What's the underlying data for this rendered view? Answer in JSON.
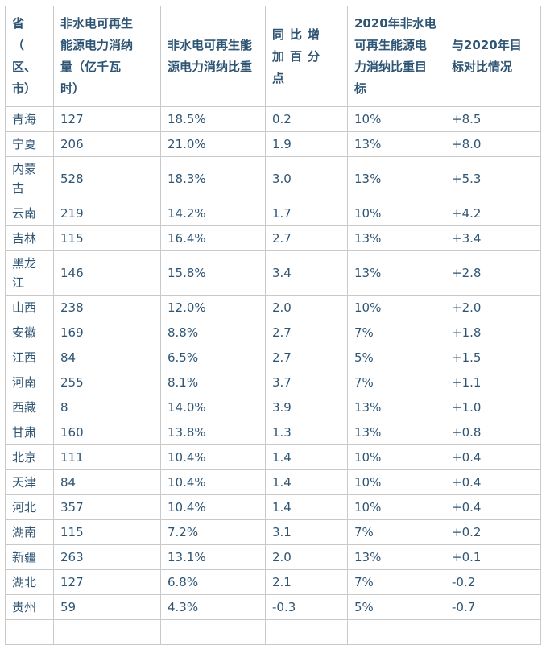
{
  "colors": {
    "text": "#2f5574",
    "border": "#c9c9c9",
    "background": "#ffffff"
  },
  "table": {
    "headers": [
      "省\n（\n区、\n市）",
      "非水电可再生\n能源电力消纳\n量（亿千瓦\n时）",
      "非水电可再生能\n源电力消纳比重",
      "同比增\n加百分\n点",
      "2020年非水电\n可再生能源电\n力消纳比重目\n标",
      "与2020年目\n标对比情况"
    ],
    "rows": [
      [
        "青海",
        "127",
        "18.5%",
        "0.2",
        "10%",
        "+8.5"
      ],
      [
        "宁夏",
        "206",
        "21.0%",
        "1.9",
        "13%",
        "+8.0"
      ],
      [
        "内蒙古",
        "528",
        "18.3%",
        "3.0",
        "13%",
        "+5.3"
      ],
      [
        "云南",
        "219",
        "14.2%",
        "1.7",
        "10%",
        "+4.2"
      ],
      [
        "吉林",
        "115",
        "16.4%",
        "2.7",
        "13%",
        "+3.4"
      ],
      [
        "黑龙江",
        "146",
        "15.8%",
        "3.4",
        "13%",
        "+2.8"
      ],
      [
        "山西",
        "238",
        "12.0%",
        "2.0",
        "10%",
        "+2.0"
      ],
      [
        "安徽",
        "169",
        "8.8%",
        "2.7",
        "7%",
        "+1.8"
      ],
      [
        "江西",
        "84",
        "6.5%",
        "2.7",
        "5%",
        "+1.5"
      ],
      [
        "河南",
        "255",
        "8.1%",
        "3.7",
        "7%",
        "+1.1"
      ],
      [
        "西藏",
        "8",
        "14.0%",
        "3.9",
        "13%",
        "+1.0"
      ],
      [
        "甘肃",
        "160",
        "13.8%",
        "1.3",
        "13%",
        "+0.8"
      ],
      [
        "北京",
        "111",
        "10.4%",
        "1.4",
        "10%",
        "+0.4"
      ],
      [
        "天津",
        "84",
        "10.4%",
        "1.4",
        "10%",
        "+0.4"
      ],
      [
        "河北",
        "357",
        "10.4%",
        "1.4",
        "10%",
        "+0.4"
      ],
      [
        "湖南",
        "115",
        "7.2%",
        "3.1",
        "7%",
        "+0.2"
      ],
      [
        "新疆",
        "263",
        "13.1%",
        "2.0",
        "13%",
        "+0.1"
      ],
      [
        "湖北",
        "127",
        "6.8%",
        "2.1",
        "7%",
        "-0.2"
      ],
      [
        "贵州",
        "59",
        "4.3%",
        "-0.3",
        "5%",
        "-0.7"
      ],
      [
        "",
        "",
        "",
        "",
        "",
        ""
      ]
    ]
  },
  "chart_data": {
    "type": "table",
    "columns": [
      "省（区、市）",
      "非水电可再生能源电力消纳量（亿千瓦时）",
      "非水电可再生能源电力消纳比重",
      "同比增加百分点",
      "2020年非水电可再生能源电力消纳比重目标",
      "与2020年目标对比情况"
    ],
    "rows": [
      [
        "青海",
        127,
        "18.5%",
        0.2,
        "10%",
        "+8.5"
      ],
      [
        "宁夏",
        206,
        "21.0%",
        1.9,
        "13%",
        "+8.0"
      ],
      [
        "内蒙古",
        528,
        "18.3%",
        3.0,
        "13%",
        "+5.3"
      ],
      [
        "云南",
        219,
        "14.2%",
        1.7,
        "10%",
        "+4.2"
      ],
      [
        "吉林",
        115,
        "16.4%",
        2.7,
        "13%",
        "+3.4"
      ],
      [
        "黑龙江",
        146,
        "15.8%",
        3.4,
        "13%",
        "+2.8"
      ],
      [
        "山西",
        238,
        "12.0%",
        2.0,
        "10%",
        "+2.0"
      ],
      [
        "安徽",
        169,
        "8.8%",
        2.7,
        "7%",
        "+1.8"
      ],
      [
        "江西",
        84,
        "6.5%",
        2.7,
        "5%",
        "+1.5"
      ],
      [
        "河南",
        255,
        "8.1%",
        3.7,
        "7%",
        "+1.1"
      ],
      [
        "西藏",
        8,
        "14.0%",
        3.9,
        "13%",
        "+1.0"
      ],
      [
        "甘肃",
        160,
        "13.8%",
        1.3,
        "13%",
        "+0.8"
      ],
      [
        "北京",
        111,
        "10.4%",
        1.4,
        "10%",
        "+0.4"
      ],
      [
        "天津",
        84,
        "10.4%",
        1.4,
        "10%",
        "+0.4"
      ],
      [
        "河北",
        357,
        "10.4%",
        1.4,
        "10%",
        "+0.4"
      ],
      [
        "湖南",
        115,
        "7.2%",
        3.1,
        "7%",
        "+0.2"
      ],
      [
        "新疆",
        263,
        "13.1%",
        2.0,
        "13%",
        "+0.1"
      ],
      [
        "湖北",
        127,
        "6.8%",
        2.1,
        "7%",
        "-0.2"
      ],
      [
        "贵州",
        59,
        "4.3%",
        -0.3,
        "5%",
        "-0.7"
      ]
    ]
  }
}
